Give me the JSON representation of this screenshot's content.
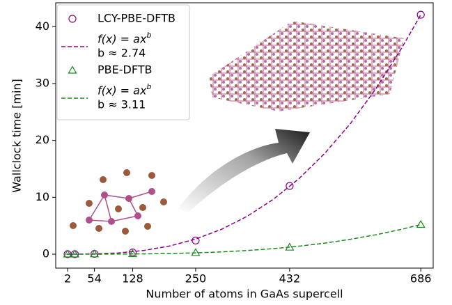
{
  "chart_data": {
    "type": "scatter",
    "xlabel": "Number of atoms in GaAs supercell",
    "ylabel": "Wallclock time [min]",
    "xlim": [
      -21,
      710
    ],
    "ylim": [
      -2.45,
      44.2
    ],
    "xticks": [
      2,
      54,
      128,
      250,
      432,
      686
    ],
    "yticks": [
      0,
      10,
      20,
      30,
      40
    ],
    "series": [
      {
        "name": "LCY-PBE-DFTB",
        "color": "#8b008b",
        "marker": "circle",
        "x": [
          2,
          16,
          54,
          128,
          250,
          432,
          686
        ],
        "values": [
          0,
          0,
          0.05,
          0.3,
          2.4,
          12.0,
          42.1
        ]
      },
      {
        "name": "f(x) = ax^b",
        "annotation": "b ≈ 2.74",
        "color": "#8b008b",
        "style": "dashed",
        "x": [
          0,
          50,
          100,
          150,
          200,
          250,
          300,
          350,
          400,
          450,
          500,
          550,
          600,
          650,
          686
        ],
        "values": [
          0,
          0.032,
          0.215,
          0.655,
          1.44,
          2.65,
          4.37,
          6.67,
          9.62,
          13.27,
          17.72,
          23.0,
          29.2,
          36.4,
          42.1
        ]
      },
      {
        "name": "PBE-DFTB",
        "color": "#1a8a1a",
        "marker": "triangle",
        "x": [
          2,
          16,
          54,
          128,
          250,
          432,
          686
        ],
        "values": [
          0,
          0,
          0.02,
          0.05,
          0.25,
          1.2,
          5.2
        ]
      },
      {
        "name": "f(x) = ax^b",
        "annotation": "b ≈ 3.11",
        "color": "#1a8a1a",
        "style": "dashed",
        "x": [
          0,
          50,
          100,
          150,
          200,
          250,
          300,
          350,
          400,
          450,
          500,
          550,
          600,
          650,
          686
        ],
        "values": [
          0,
          0.0015,
          0.013,
          0.046,
          0.112,
          0.225,
          0.397,
          0.641,
          0.971,
          1.4,
          1.94,
          2.62,
          3.43,
          4.4,
          5.2
        ]
      }
    ]
  }
}
